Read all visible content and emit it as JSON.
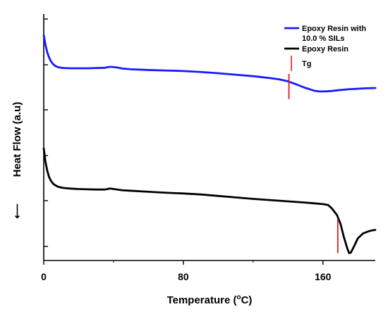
{
  "chart_data": {
    "type": "line",
    "xlabel": "Temperature (°C)",
    "xlabel_parts": {
      "before": "Temperature (",
      "sup": "o",
      "after": "C)"
    },
    "ylabel": "Heat Flow (a.u)",
    "ylabel_arrow": "⟵",
    "xlim": [
      0,
      190
    ],
    "ylim": [
      0,
      1
    ],
    "x_ticks": [
      0,
      80,
      160
    ],
    "x_tick_labels": [
      "0",
      "80",
      "160"
    ],
    "y_tick_labels_visible": false,
    "y_tick_count": 5,
    "grid": false,
    "legend_position": "top-right",
    "series": [
      {
        "name": "Epoxy Resin with 10.0 % SILs",
        "legend_lines": [
          "Epoxy Resin with",
          "10.0 % SILs"
        ],
        "color": "#1a1aff",
        "x": [
          0,
          1,
          2,
          3,
          4,
          5,
          6,
          7,
          8,
          10,
          12,
          15,
          20,
          25,
          30,
          35,
          38,
          40,
          43,
          45,
          50,
          60,
          70,
          80,
          90,
          100,
          110,
          120,
          130,
          135,
          140,
          145,
          150,
          152,
          155,
          158,
          160,
          163,
          165,
          170,
          175,
          180,
          185,
          190
        ],
        "y": [
          0.915,
          0.875,
          0.845,
          0.825,
          0.81,
          0.8,
          0.793,
          0.788,
          0.785,
          0.782,
          0.781,
          0.78,
          0.78,
          0.78,
          0.781,
          0.782,
          0.786,
          0.785,
          0.782,
          0.779,
          0.776,
          0.773,
          0.771,
          0.769,
          0.765,
          0.76,
          0.754,
          0.748,
          0.74,
          0.735,
          0.727,
          0.714,
          0.7,
          0.696,
          0.689,
          0.686,
          0.686,
          0.687,
          0.688,
          0.692,
          0.695,
          0.697,
          0.699,
          0.7
        ]
      },
      {
        "name": "Epoxy Resin",
        "legend_lines": [
          "Epoxy Resin"
        ],
        "color": "#000000",
        "x": [
          0,
          1,
          2,
          3,
          4,
          5,
          6,
          7,
          8,
          10,
          12,
          15,
          20,
          25,
          30,
          35,
          38,
          40,
          43,
          45,
          50,
          60,
          70,
          80,
          90,
          100,
          110,
          120,
          130,
          140,
          150,
          155,
          160,
          163,
          165,
          168,
          170,
          172,
          174,
          175,
          176,
          178,
          180,
          183,
          186,
          188,
          190
        ],
        "y": [
          0.455,
          0.4,
          0.365,
          0.34,
          0.325,
          0.315,
          0.308,
          0.304,
          0.3,
          0.296,
          0.294,
          0.292,
          0.29,
          0.289,
          0.288,
          0.288,
          0.292,
          0.29,
          0.287,
          0.285,
          0.283,
          0.279,
          0.275,
          0.272,
          0.268,
          0.262,
          0.256,
          0.25,
          0.245,
          0.24,
          0.235,
          0.232,
          0.229,
          0.225,
          0.212,
          0.185,
          0.15,
          0.095,
          0.048,
          0.03,
          0.032,
          0.06,
          0.09,
          0.11,
          0.118,
          0.122,
          0.124
        ]
      }
    ],
    "tg_markers": [
      {
        "series": "Epoxy Resin with 10.0 % SILs",
        "x": 140.5,
        "y_from": 0.655,
        "y_to": 0.785,
        "color": "#e01b1b"
      },
      {
        "series": "Epoxy Resin",
        "x": 168.5,
        "y_from": 0.03,
        "y_to": 0.17,
        "color": "#e01b1b"
      }
    ],
    "legend_marker_label": "Tg",
    "legend_marker_color": "#e01b1b"
  }
}
